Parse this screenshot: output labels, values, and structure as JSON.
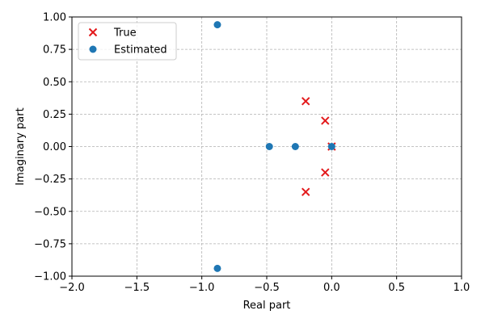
{
  "chart_data": {
    "type": "scatter",
    "title": "",
    "xlabel": "Real part",
    "ylabel": "Imaginary part",
    "xlim": [
      -2.0,
      1.0
    ],
    "ylim": [
      -1.0,
      1.0
    ],
    "xticks": [
      -2.0,
      -1.5,
      -1.0,
      -0.5,
      0.0,
      0.5,
      1.0
    ],
    "xtick_labels": [
      "−2.0",
      "−1.5",
      "−1.0",
      "−0.5",
      "0.0",
      "0.5",
      "1.0"
    ],
    "yticks": [
      -1.0,
      -0.75,
      -0.5,
      -0.25,
      0.0,
      0.25,
      0.5,
      0.75,
      1.0
    ],
    "ytick_labels": [
      "−1.00",
      "−0.75",
      "−0.50",
      "−0.25",
      "0.00",
      "0.25",
      "0.50",
      "0.75",
      "1.00"
    ],
    "grid": true,
    "legend_position": "top-left",
    "series": [
      {
        "name": "True",
        "marker": "x",
        "color": "#e31a1c",
        "points": [
          {
            "x": -0.2,
            "y": 0.35
          },
          {
            "x": -0.2,
            "y": -0.35
          },
          {
            "x": -0.05,
            "y": 0.2
          },
          {
            "x": -0.05,
            "y": -0.2
          },
          {
            "x": 0.0,
            "y": 0.0
          }
        ]
      },
      {
        "name": "Estimated",
        "marker": "o",
        "color": "#1f77b4",
        "points": [
          {
            "x": -0.88,
            "y": 0.94
          },
          {
            "x": -0.88,
            "y": -0.94
          },
          {
            "x": -0.48,
            "y": 0.0
          },
          {
            "x": -0.28,
            "y": 0.0
          },
          {
            "x": 0.0,
            "y": 0.0
          }
        ]
      }
    ]
  }
}
